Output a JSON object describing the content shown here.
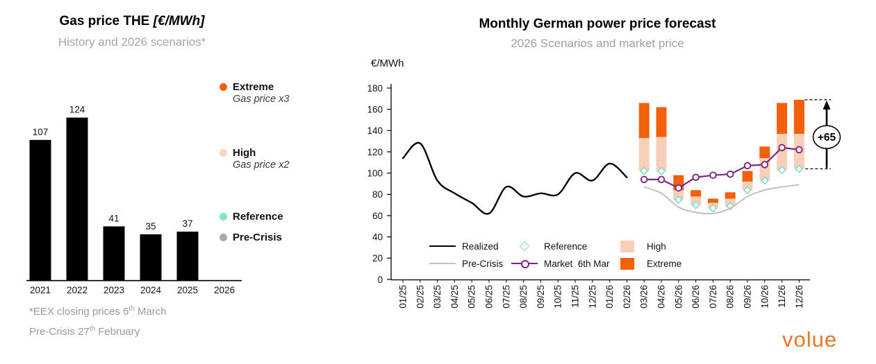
{
  "left_chart": {
    "title_main": "Gas price THE",
    "title_unit": "[€/MWh]",
    "subtitle": "History and 2026 scenarios*",
    "legend": [
      {
        "label": "Extreme",
        "sublabel": "Gas price x3",
        "color": "#F2600A"
      },
      {
        "label": "High",
        "sublabel": "Gas price x2",
        "color": "#F9D5C1"
      },
      {
        "label": "Reference",
        "sublabel": "",
        "color": "#85E0CD"
      },
      {
        "label": "Pre-Crisis",
        "sublabel": "",
        "color": "#ABABAB"
      }
    ],
    "footnote_line1": {
      "pre": "*EEX closing prices 6",
      "sup": "th",
      "post": " March"
    },
    "footnote_line2": {
      "pre": "Pre-Crisis 27",
      "sup": "th",
      "post": " February"
    }
  },
  "right_chart": {
    "title": "Monthly German power price forecast",
    "subtitle": "2026 Scenarios and market price",
    "y_axis_label": "€/MWh",
    "legend": [
      {
        "label": "Realized",
        "swatch": "line",
        "color": "#000000"
      },
      {
        "label": "Reference",
        "swatch": "diamond",
        "color": "#7FDCCB"
      },
      {
        "label": "High",
        "swatch": "box",
        "color": "#F9CFB8"
      },
      {
        "label": "Pre-Crisis",
        "swatch": "line",
        "color": "#C0C0C0"
      },
      {
        "label": "Market  6th Mar",
        "swatch": "line_marker",
        "color": "#7E2482"
      },
      {
        "label": "Extreme",
        "swatch": "box",
        "color": "#F2600A"
      }
    ]
  },
  "chart_data": [
    {
      "id": "gas_price_history_scenarios",
      "type": "bar",
      "title": "Gas price THE [€/MWh]",
      "subtitle": "History and 2026 scenarios*",
      "categories": [
        "2021",
        "2022",
        "2023",
        "2024",
        "2025",
        "2026"
      ],
      "values": [
        107,
        124,
        41,
        35,
        37,
        null
      ],
      "bar_color": "#000000"
    },
    {
      "id": "monthly_german_power_price_forecast",
      "type": "line",
      "title": "Monthly German power price forecast",
      "subtitle": "2026 Scenarios and market price",
      "ylabel": "€/MWh",
      "ylim": [
        0,
        180
      ],
      "ytick_step": 20,
      "x": [
        "01/25",
        "02/25",
        "03/25",
        "04/25",
        "05/25",
        "06/25",
        "07/25",
        "08/25",
        "09/25",
        "10/25",
        "11/25",
        "12/25",
        "01/26",
        "02/26",
        "03/26",
        "04/26",
        "05/26",
        "06/26",
        "07/26",
        "08/26",
        "09/26",
        "10/26",
        "11/26",
        "12/26"
      ],
      "series": [
        {
          "name": "Realized",
          "type": "line",
          "color": "#000000",
          "start_index": 0,
          "values": [
            114,
            128,
            93,
            81,
            72,
            62,
            87,
            78,
            81,
            80,
            100,
            93,
            109,
            96
          ]
        },
        {
          "name": "Pre-Crisis",
          "type": "line",
          "color": "#C0C0C0",
          "start_index": 14,
          "values": [
            87,
            81,
            68,
            63,
            62,
            67,
            78,
            84,
            87,
            89
          ]
        },
        {
          "name": "Market 6th Mar",
          "type": "line_markers",
          "color": "#7E2482",
          "start_index": 14,
          "values": [
            94,
            94,
            86,
            96,
            98,
            99,
            107,
            108,
            124,
            122
          ]
        },
        {
          "name": "Reference",
          "type": "diamond_markers",
          "color": "#7FDCCB",
          "start_index": 14,
          "values": [
            102,
            102,
            75,
            70,
            67,
            69,
            84,
            93,
            103,
            104
          ]
        },
        {
          "name": "High",
          "type": "floating_bar",
          "color": "#F9CFB8",
          "start_index": 14,
          "base_series": "Reference",
          "values": [
            133,
            134,
            84,
            78,
            72,
            76,
            92,
            114,
            137,
            137
          ]
        },
        {
          "name": "Extreme",
          "type": "floating_bar",
          "color": "#F2600A",
          "start_index": 14,
          "base_series": "High",
          "values": [
            166,
            162,
            98,
            84,
            76,
            82,
            102,
            125,
            166,
            169
          ]
        }
      ],
      "annotation": {
        "text": "+65",
        "month": "12/26",
        "from_series": "Reference",
        "to_series": "Extreme"
      }
    }
  ],
  "logo": "volue"
}
